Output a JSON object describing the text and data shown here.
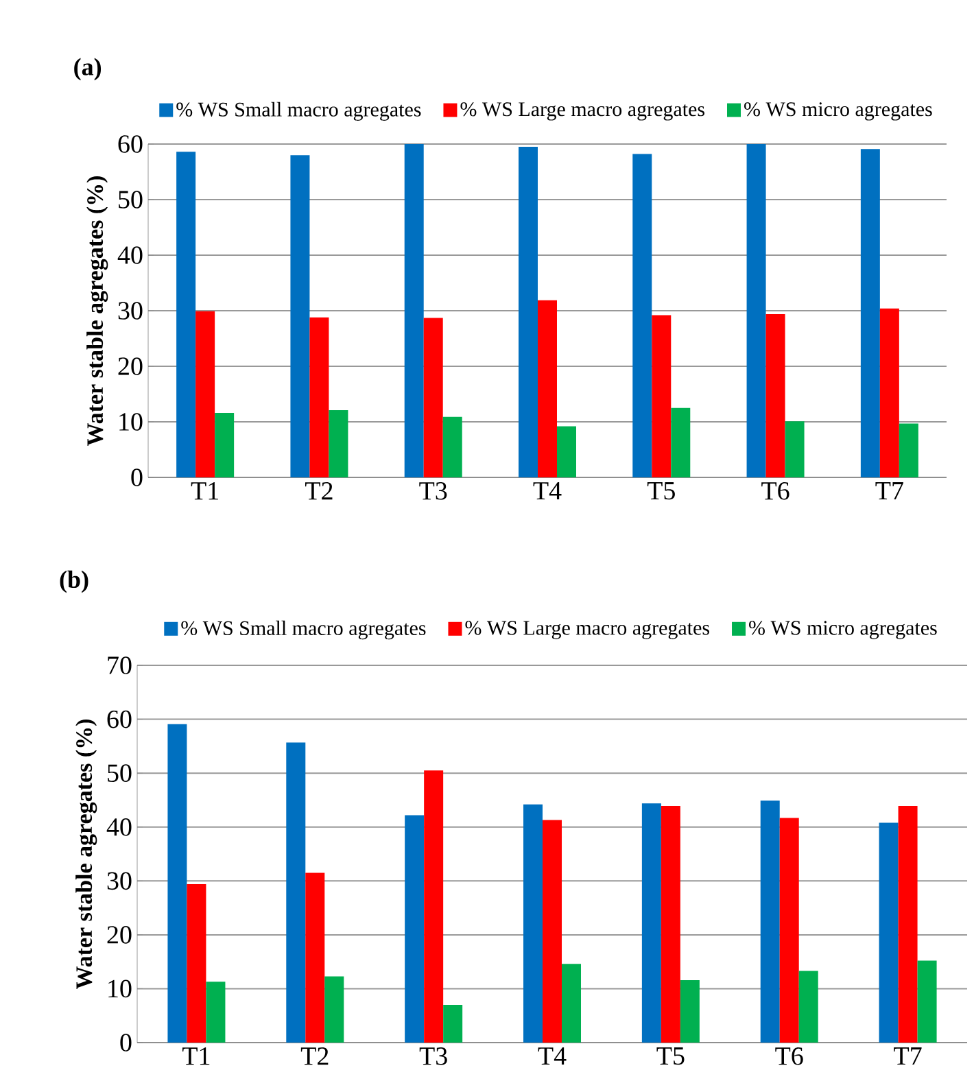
{
  "chart_data": [
    {
      "type": "bar",
      "title": "(a)",
      "ylabel": "Water stable agregates (%)",
      "categories": [
        "T1",
        "T2",
        "T3",
        "T4",
        "T5",
        "T6",
        "T7"
      ],
      "series": [
        {
          "name": "% WS Small macro agregates",
          "color": "#0070c0",
          "values": [
            58.6,
            58.0,
            60.0,
            59.5,
            58.2,
            60.0,
            59.1
          ]
        },
        {
          "name": "% WS Large macro agregates",
          "color": "#ff0000",
          "values": [
            29.9,
            28.8,
            28.7,
            31.9,
            29.2,
            29.4,
            30.4
          ]
        },
        {
          "name": "% WS micro agregates",
          "color": "#00b050",
          "values": [
            11.6,
            12.1,
            10.9,
            9.2,
            12.5,
            10.1,
            9.7
          ]
        }
      ],
      "ylim": [
        0,
        60
      ],
      "yticks": [
        0,
        10,
        20,
        30,
        40,
        50,
        60
      ],
      "grid": "y",
      "legend": "top"
    },
    {
      "type": "bar",
      "title": "(b)",
      "ylabel": "Water stable agregates (%)",
      "categories": [
        "T1",
        "T2",
        "T3",
        "T4",
        "T5",
        "T6",
        "T7"
      ],
      "series": [
        {
          "name": "% WS Small macro agregates",
          "color": "#0070c0",
          "values": [
            59.1,
            55.7,
            42.2,
            44.2,
            44.4,
            44.9,
            40.8
          ]
        },
        {
          "name": "% WS Large macro agregates",
          "color": "#ff0000",
          "values": [
            29.4,
            31.5,
            50.5,
            41.3,
            43.9,
            41.7,
            43.9
          ]
        },
        {
          "name": "% WS micro agregates",
          "color": "#00b050",
          "values": [
            11.3,
            12.3,
            7.0,
            14.6,
            11.6,
            13.3,
            15.2
          ]
        }
      ],
      "ylim": [
        0,
        70
      ],
      "yticks": [
        0,
        10,
        20,
        30,
        40,
        50,
        60,
        70
      ],
      "grid": "y",
      "legend": "top"
    }
  ]
}
